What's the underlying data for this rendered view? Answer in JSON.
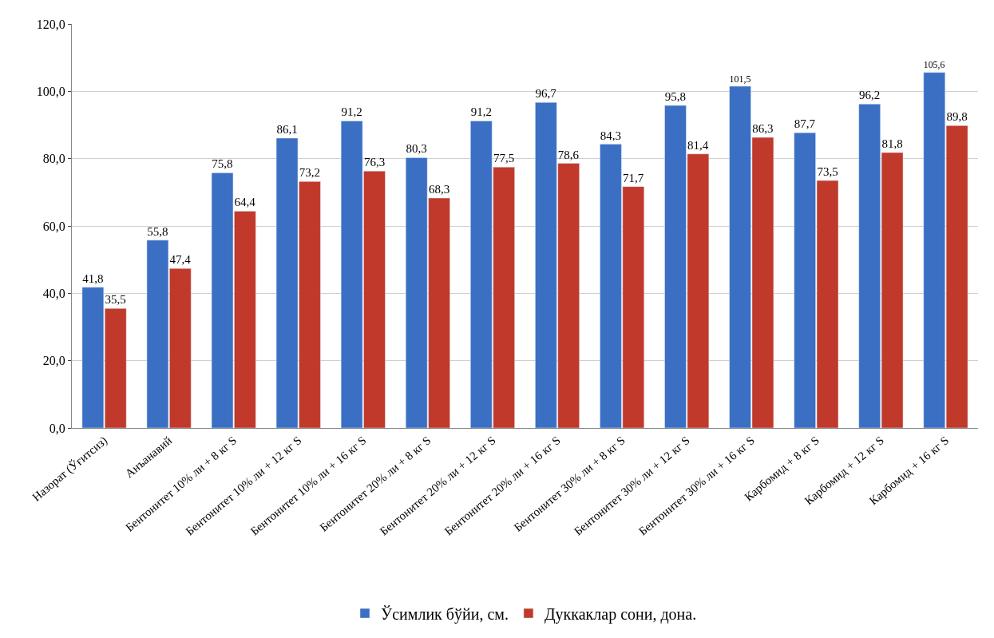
{
  "chart_data": {
    "type": "bar",
    "categories": [
      "Назорат (Ўғитсиз)",
      "Анъанавий",
      "Бентонитет 10% ли + 8 кг S",
      "Бентонитет 10% ли + 12 кг S",
      "Бентонитет 10% ли + 16 кг S",
      "Бентонитет 20% ли + 8 кг S",
      "Бентонитет 20% ли + 12 кг S",
      "Бентонитет 20% ли + 16 кг S",
      "Бентонитет 30% ли + 8 кг S",
      "Бентонитет 30% ли + 12 кг S",
      "Бентонитет 30% ли + 16 кг S",
      "Карбомид + 8 кг S",
      "Карбомид + 12 кг S",
      "Карбомид + 16 кг S"
    ],
    "series": [
      {
        "name": "Ўсимлик бўйи, см.",
        "color": "#3a6fc4",
        "values": [
          41.8,
          55.8,
          75.8,
          86.1,
          91.2,
          80.3,
          91.2,
          96.7,
          84.3,
          95.8,
          101.5,
          87.7,
          96.2,
          105.6
        ],
        "value_labels": [
          "41,8",
          "55,8",
          "75,8",
          "86,1",
          "91,2",
          "80,3",
          "91,2",
          "96,7",
          "84,3",
          "95,8",
          "101,5",
          "87,7",
          "96,2",
          "105,6"
        ]
      },
      {
        "name": "Дуккаклар сони, дона.",
        "color": "#c0392b",
        "values": [
          35.5,
          47.4,
          64.4,
          73.2,
          76.3,
          68.3,
          77.5,
          78.6,
          71.7,
          81.4,
          86.3,
          73.5,
          81.8,
          89.8
        ],
        "value_labels": [
          "35,5",
          "47,4",
          "64,4",
          "73,2",
          "76,3",
          "68,3",
          "77,5",
          "78,6",
          "71,7",
          "81,4",
          "86,3",
          "73,5",
          "81,8",
          "89,8"
        ]
      }
    ],
    "ylim": [
      0,
      120
    ],
    "yticks": [
      {
        "value": 0,
        "label": "0,0"
      },
      {
        "value": 20,
        "label": "20,0"
      },
      {
        "value": 40,
        "label": "40,0"
      },
      {
        "value": 60,
        "label": "60,0"
      },
      {
        "value": 80,
        "label": "80,0"
      },
      {
        "value": 100,
        "label": "100,0"
      },
      {
        "value": 120,
        "label": "120,0"
      }
    ],
    "grid": "y",
    "legend": "bottom"
  }
}
